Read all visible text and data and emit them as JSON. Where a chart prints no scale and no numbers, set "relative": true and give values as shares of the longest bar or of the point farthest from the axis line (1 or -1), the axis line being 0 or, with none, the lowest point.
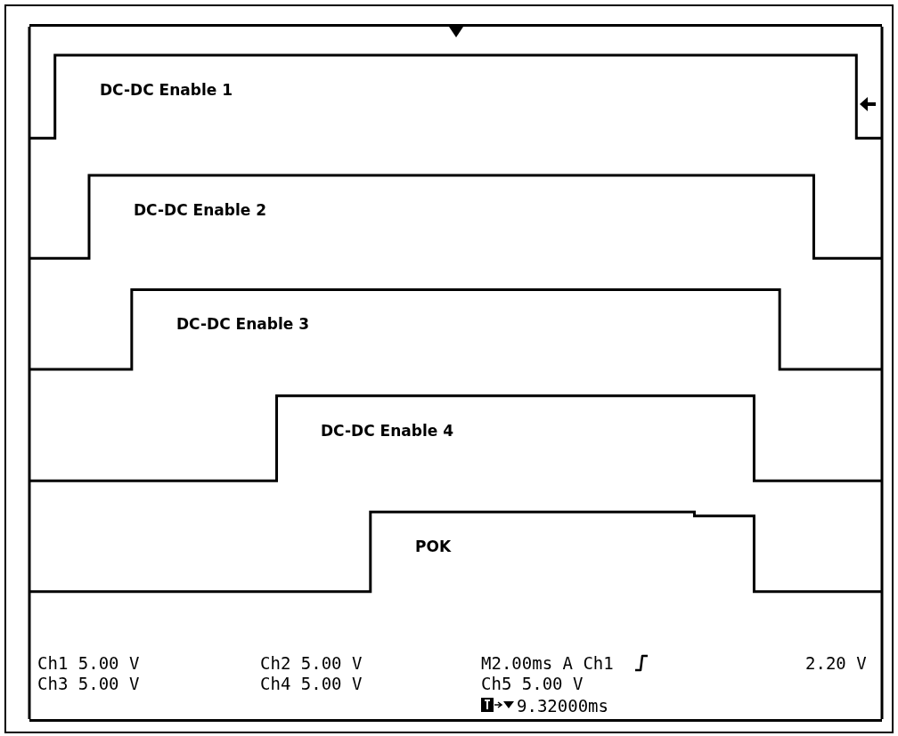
{
  "chart_data": {
    "type": "step",
    "relative": true,
    "legend": false,
    "line_style": "solid",
    "marker": "none",
    "categories": [
      null,
      null,
      null,
      null,
      null,
      null,
      null,
      null,
      null,
      null,
      null,
      null,
      null,
      null,
      null,
      null,
      null,
      null,
      null,
      null,
      null,
      null,
      null,
      null,
      null,
      null,
      null,
      null,
      null,
      null,
      null,
      null,
      null,
      null,
      null,
      null,
      null,
      null,
      null,
      null,
      null,
      null,
      null,
      null,
      null,
      null,
      null,
      null,
      null,
      null,
      null,
      null,
      null,
      null,
      null,
      null,
      null,
      null,
      null,
      null,
      null,
      null,
      null,
      null,
      null,
      null,
      null,
      null,
      null,
      null,
      null,
      null,
      null,
      null,
      null,
      null,
      null,
      null,
      null,
      null,
      null,
      null,
      null,
      null,
      null,
      null,
      null,
      null,
      null,
      null,
      null,
      null,
      null,
      null,
      null,
      null,
      null,
      null,
      null,
      null,
      null
    ],
    "series": [
      {
        "name": "DC-DC Enable 1",
        "color": "#000000",
        "values": [
          0.875,
          0.875,
          0.875,
          1,
          1,
          1,
          1,
          1,
          1,
          1,
          1,
          1,
          1,
          1,
          1,
          1,
          1,
          1,
          1,
          1,
          1,
          1,
          1,
          1,
          1,
          1,
          1,
          1,
          1,
          1,
          1,
          1,
          1,
          1,
          1,
          1,
          1,
          1,
          1,
          1,
          1,
          1,
          1,
          1,
          1,
          1,
          1,
          1,
          1,
          1,
          1,
          1,
          1,
          1,
          1,
          1,
          1,
          1,
          1,
          1,
          1,
          1,
          1,
          1,
          1,
          1,
          1,
          1,
          1,
          1,
          1,
          1,
          1,
          1,
          1,
          1,
          1,
          1,
          1,
          1,
          1,
          1,
          1,
          1,
          1,
          1,
          1,
          1,
          1,
          1,
          1,
          1,
          1,
          1,
          1,
          1,
          1,
          0.875,
          0.875,
          0.875,
          0.875
        ]
      },
      {
        "name": "DC-DC Enable 2",
        "color": "#000000",
        "values": [
          0.694,
          0.694,
          0.694,
          0.694,
          0.694,
          0.694,
          0.694,
          0.819,
          0.819,
          0.819,
          0.819,
          0.819,
          0.819,
          0.819,
          0.819,
          0.819,
          0.819,
          0.819,
          0.819,
          0.819,
          0.819,
          0.819,
          0.819,
          0.819,
          0.819,
          0.819,
          0.819,
          0.819,
          0.819,
          0.819,
          0.819,
          0.819,
          0.819,
          0.819,
          0.819,
          0.819,
          0.819,
          0.819,
          0.819,
          0.819,
          0.819,
          0.819,
          0.819,
          0.819,
          0.819,
          0.819,
          0.819,
          0.819,
          0.819,
          0.819,
          0.819,
          0.819,
          0.819,
          0.819,
          0.819,
          0.819,
          0.819,
          0.819,
          0.819,
          0.819,
          0.819,
          0.819,
          0.819,
          0.819,
          0.819,
          0.819,
          0.819,
          0.819,
          0.819,
          0.819,
          0.819,
          0.819,
          0.819,
          0.819,
          0.819,
          0.819,
          0.819,
          0.819,
          0.819,
          0.819,
          0.819,
          0.819,
          0.819,
          0.819,
          0.819,
          0.819,
          0.819,
          0.819,
          0.819,
          0.819,
          0.819,
          0.819,
          0.694,
          0.694,
          0.694,
          0.694,
          0.694,
          0.694,
          0.694,
          0.694,
          0.694
        ]
      },
      {
        "name": "DC-DC Enable 3",
        "color": "#000000",
        "values": [
          0.527,
          0.527,
          0.527,
          0.527,
          0.527,
          0.527,
          0.527,
          0.527,
          0.527,
          0.527,
          0.527,
          0.527,
          0.647,
          0.647,
          0.647,
          0.647,
          0.647,
          0.647,
          0.647,
          0.647,
          0.647,
          0.647,
          0.647,
          0.647,
          0.647,
          0.647,
          0.647,
          0.647,
          0.647,
          0.647,
          0.647,
          0.647,
          0.647,
          0.647,
          0.647,
          0.647,
          0.647,
          0.647,
          0.647,
          0.647,
          0.647,
          0.647,
          0.647,
          0.647,
          0.647,
          0.647,
          0.647,
          0.647,
          0.647,
          0.647,
          0.647,
          0.647,
          0.647,
          0.647,
          0.647,
          0.647,
          0.647,
          0.647,
          0.647,
          0.647,
          0.647,
          0.647,
          0.647,
          0.647,
          0.647,
          0.647,
          0.647,
          0.647,
          0.647,
          0.647,
          0.647,
          0.647,
          0.647,
          0.647,
          0.647,
          0.647,
          0.647,
          0.647,
          0.647,
          0.647,
          0.647,
          0.647,
          0.647,
          0.647,
          0.647,
          0.647,
          0.647,
          0.647,
          0.527,
          0.527,
          0.527,
          0.527,
          0.527,
          0.527,
          0.527,
          0.527,
          0.527,
          0.527,
          0.527,
          0.527,
          0.527
        ]
      },
      {
        "name": "DC-DC Enable 4",
        "color": "#000000",
        "values": [
          0.359,
          0.359,
          0.359,
          0.359,
          0.359,
          0.359,
          0.359,
          0.359,
          0.359,
          0.359,
          0.359,
          0.359,
          0.359,
          0.359,
          0.359,
          0.359,
          0.359,
          0.359,
          0.359,
          0.359,
          0.359,
          0.359,
          0.359,
          0.359,
          0.359,
          0.359,
          0.359,
          0.359,
          0.359,
          0.487,
          0.487,
          0.487,
          0.487,
          0.487,
          0.487,
          0.487,
          0.487,
          0.487,
          0.487,
          0.487,
          0.487,
          0.487,
          0.487,
          0.487,
          0.487,
          0.487,
          0.487,
          0.487,
          0.487,
          0.487,
          0.487,
          0.487,
          0.487,
          0.487,
          0.487,
          0.487,
          0.487,
          0.487,
          0.487,
          0.487,
          0.487,
          0.487,
          0.487,
          0.487,
          0.487,
          0.487,
          0.487,
          0.487,
          0.487,
          0.487,
          0.487,
          0.487,
          0.487,
          0.487,
          0.487,
          0.487,
          0.487,
          0.487,
          0.487,
          0.487,
          0.487,
          0.487,
          0.487,
          0.487,
          0.487,
          0.359,
          0.359,
          0.359,
          0.359,
          0.359,
          0.359,
          0.359,
          0.359,
          0.359,
          0.359,
          0.359,
          0.359,
          0.359,
          0.359,
          0.359,
          0.359
        ]
      },
      {
        "name": "POK",
        "color": "#000000",
        "values": [
          0.192,
          0.192,
          0.192,
          0.192,
          0.192,
          0.192,
          0.192,
          0.192,
          0.192,
          0.192,
          0.192,
          0.192,
          0.192,
          0.192,
          0.192,
          0.192,
          0.192,
          0.192,
          0.192,
          0.192,
          0.192,
          0.192,
          0.192,
          0.192,
          0.192,
          0.192,
          0.192,
          0.192,
          0.192,
          0.192,
          0.192,
          0.192,
          0.192,
          0.192,
          0.192,
          0.192,
          0.192,
          0.192,
          0.192,
          0.192,
          0.312,
          0.312,
          0.312,
          0.312,
          0.312,
          0.312,
          0.312,
          0.312,
          0.312,
          0.312,
          0.312,
          0.312,
          0.312,
          0.312,
          0.312,
          0.312,
          0.312,
          0.312,
          0.312,
          0.312,
          0.312,
          0.312,
          0.312,
          0.312,
          0.312,
          0.312,
          0.312,
          0.312,
          0.312,
          0.312,
          0.312,
          0.312,
          0.312,
          0.312,
          0.312,
          0.312,
          0.312,
          0.312,
          0.306,
          0.306,
          0.306,
          0.306,
          0.306,
          0.306,
          0.306,
          0.192,
          0.192,
          0.192,
          0.192,
          0.192,
          0.192,
          0.192,
          0.192,
          0.192,
          0.192,
          0.192,
          0.192,
          0.192,
          0.192,
          0.192,
          0.192
        ]
      }
    ],
    "annotations": [
      "Ch1 5.00 V",
      "Ch2 5.00 V",
      "M2.00ms A Ch1",
      "2.20 V",
      "Ch3 5.00 V",
      "Ch4 5.00 V",
      "Ch5 5.00 V",
      "9.32000ms"
    ]
  }
}
